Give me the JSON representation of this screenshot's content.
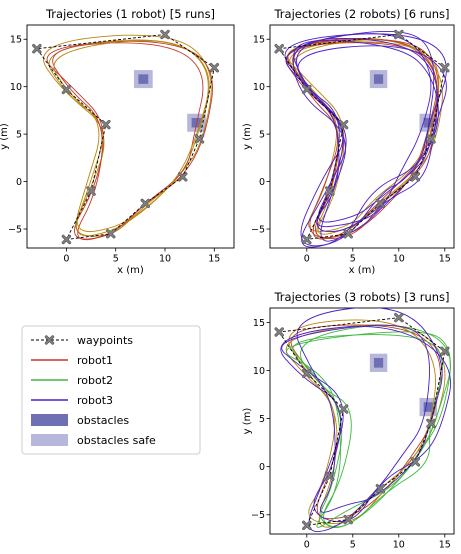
{
  "colors": {
    "robot1": "#c0392b",
    "robot1_alt": "#b8860b",
    "robot2": "#3cb83c",
    "robot3": "#4b1fc8",
    "obstacle": "#6f6fb3",
    "obstacle_safe": "#b7b7db",
    "waypoint_line": "#000000",
    "waypoint_marker": "#808080"
  },
  "legend": {
    "items": [
      {
        "key": "waypoints",
        "label": "waypoints",
        "kind": "waypoint"
      },
      {
        "key": "robot1",
        "label": "robot1",
        "kind": "line"
      },
      {
        "key": "robot2",
        "label": "robot2",
        "kind": "line"
      },
      {
        "key": "robot3",
        "label": "robot3",
        "kind": "line"
      },
      {
        "key": "obstacles",
        "label": "obstacles",
        "kind": "box"
      },
      {
        "key": "obstacles_safe",
        "label": "obstacles safe",
        "kind": "box"
      }
    ]
  },
  "chart_data": [
    {
      "type": "line",
      "title": "Trajectories (1 robot) [5 runs]",
      "xlabel": "x (m)",
      "ylabel": "y (m)",
      "xlim": [
        -4,
        17
      ],
      "ylim": [
        -7,
        16.5
      ],
      "xticks": [
        0,
        5,
        10,
        15
      ],
      "yticks": [
        -5,
        0,
        5,
        10,
        15
      ],
      "waypoints": [
        [
          -3,
          14
        ],
        [
          0,
          9.7
        ],
        [
          4,
          6
        ],
        [
          2.5,
          -1
        ],
        [
          0,
          -6.1
        ],
        [
          4.5,
          -5.5
        ],
        [
          8,
          -2.3
        ],
        [
          11.8,
          0.5
        ],
        [
          13.5,
          4.5
        ],
        [
          15,
          12
        ],
        [
          10,
          15.5
        ],
        [
          -3,
          14
        ]
      ],
      "obstacles": [
        [
          7.8,
          10.8
        ],
        [
          13.2,
          6.2
        ]
      ],
      "series": [
        {
          "name": "robot1",
          "runs": 5
        }
      ]
    },
    {
      "type": "line",
      "title": "Trajectories (2 robots) [6 runs]",
      "xlabel": "x (m)",
      "ylabel": "y (m)",
      "xlim": [
        -4,
        16
      ],
      "ylim": [
        -7,
        16.5
      ],
      "xticks": [
        0,
        5,
        10,
        15
      ],
      "yticks": [
        -5,
        0,
        5,
        10,
        15
      ],
      "waypoints": [
        [
          -3,
          14
        ],
        [
          0,
          9.7
        ],
        [
          4,
          6
        ],
        [
          2.5,
          -1
        ],
        [
          0,
          -6.1
        ],
        [
          4.5,
          -5.5
        ],
        [
          8,
          -2.3
        ],
        [
          11.8,
          0.5
        ],
        [
          13.5,
          4.5
        ],
        [
          15,
          12
        ],
        [
          10,
          15.5
        ],
        [
          -3,
          14
        ]
      ],
      "obstacles": [
        [
          7.8,
          10.8
        ],
        [
          13.2,
          6.2
        ]
      ],
      "series": [
        {
          "name": "robot1",
          "runs": 6
        },
        {
          "name": "robot3",
          "runs": 6
        }
      ]
    },
    {
      "type": "line",
      "title": "Trajectories (3 robots) [3 runs]",
      "xlabel": "x (m)",
      "ylabel": "y (m)",
      "xlim": [
        -4,
        16
      ],
      "ylim": [
        -7,
        16.5
      ],
      "xticks": [
        0,
        5,
        10,
        15
      ],
      "yticks": [
        -5,
        0,
        5,
        10,
        15
      ],
      "waypoints": [
        [
          -3,
          14
        ],
        [
          0,
          9.7
        ],
        [
          4,
          6
        ],
        [
          2.5,
          -1
        ],
        [
          0,
          -6.1
        ],
        [
          4.5,
          -5.5
        ],
        [
          8,
          -2.3
        ],
        [
          11.8,
          0.5
        ],
        [
          13.5,
          4.5
        ],
        [
          15,
          12
        ],
        [
          10,
          15.5
        ],
        [
          -3,
          14
        ]
      ],
      "obstacles": [
        [
          7.8,
          10.8
        ],
        [
          13.2,
          6.2
        ]
      ],
      "series": [
        {
          "name": "robot1",
          "runs": 3
        },
        {
          "name": "robot2",
          "runs": 3
        },
        {
          "name": "robot3",
          "runs": 3
        }
      ]
    }
  ]
}
